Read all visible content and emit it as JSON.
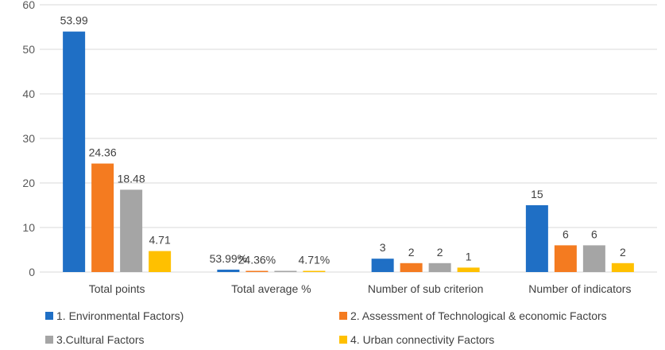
{
  "chart_data": {
    "type": "bar",
    "title": "",
    "xlabel": "",
    "ylabel": "",
    "ylim": [
      0,
      60
    ],
    "yticks": [
      "0",
      "10",
      "20",
      "30",
      "40",
      "50",
      "60"
    ],
    "categories": [
      "Total  points",
      "Total average %",
      "Number of sub criterion",
      "Number of indicators"
    ],
    "series": [
      {
        "name": "1.  Environmental Factors)",
        "color": "#1f6fc5",
        "values": [
          53.99,
          0.5399,
          3,
          15
        ],
        "labels": [
          "53.99",
          "53.99%",
          "3",
          "15"
        ]
      },
      {
        "name": "2. Assessment of Technological & economic  Factors",
        "color": "#f47b20",
        "values": [
          24.36,
          0.2436,
          2,
          6
        ],
        "labels": [
          "24.36",
          "24.36%",
          "2",
          "6"
        ]
      },
      {
        "name": "3.Cultural   Factors",
        "color": "#a5a5a5",
        "values": [
          18.48,
          0.1848,
          2,
          6
        ],
        "labels": [
          "18.48",
          "",
          "2",
          "6"
        ]
      },
      {
        "name": "4. Urban connectivity   Factors",
        "color": "#ffc000",
        "values": [
          4.71,
          0.0471,
          1,
          2
        ],
        "labels": [
          "4.71",
          "4.71%",
          "1",
          "2"
        ]
      }
    ],
    "grid": true,
    "legend_position": "bottom"
  }
}
